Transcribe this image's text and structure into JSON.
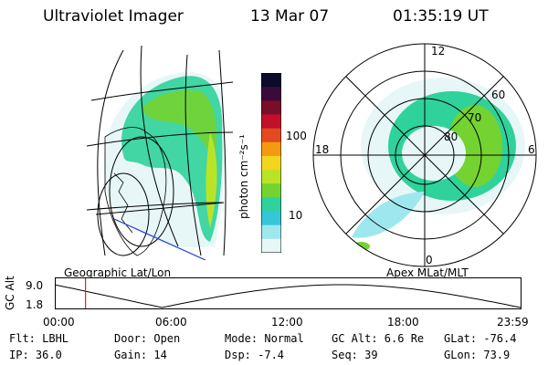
{
  "header": {
    "instrument": "Ultraviolet Imager",
    "date": "13 Mar 07",
    "time": "01:35:19 UT"
  },
  "colorbar": {
    "label": "photon cm⁻²s⁻¹",
    "ticks": [
      "100",
      "10"
    ],
    "colors": [
      "#0b0b2a",
      "#3a0a3a",
      "#7a0d2a",
      "#c2102a",
      "#e24a20",
      "#f39a10",
      "#f3d51e",
      "#b9e426",
      "#74d331",
      "#2fd29a",
      "#35c7d8",
      "#9fe7ef",
      "#e7f7f8"
    ]
  },
  "maps": {
    "left_title": "Geographic Lat/Lon",
    "right_title": "Apex MLat/MLT",
    "polar_labels": {
      "top": "12",
      "left": "18",
      "right": "6",
      "bottom": "0"
    },
    "ring_labels": [
      "60",
      "70",
      "80"
    ]
  },
  "timeline": {
    "ylabel": "GC Alt",
    "y_ticks": [
      "9.0",
      "1.8"
    ],
    "x_ticks": [
      "00:00",
      "06:00",
      "12:00",
      "18:00",
      "23:59"
    ],
    "marker_time": "01:35",
    "marker_color": "#d32020"
  },
  "status": {
    "flt": "Flt: LBHL",
    "ip": "IP: 36.0",
    "door": "Door: Open",
    "gain": "Gain: 14",
    "mode": "Mode: Normal",
    "dsp": "Dsp:   -7.4",
    "gcalt": "GC Alt: 6.6 Re",
    "seq": "Seq: 39",
    "glat": "GLat: -76.4",
    "glon": "GLon:  73.9"
  }
}
